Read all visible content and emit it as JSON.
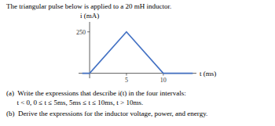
{
  "chart_data": {
    "type": "line",
    "title": "The triangular pulse below is applied to a 20 mH inductor.",
    "annotations": [
      "(a)  Write the expressions that describe i(t) in the four intervals:",
      "      t < 0, 0 ≤ t ≤ 5ms, 5ms ≤ t ≤ 10ms, t > 10ms.",
      "(b)  Derive the expressions for the inductor voltage, power, and energy."
    ],
    "x_label": "t (ms)",
    "y_label": "i (mA)",
    "x": [
      -1,
      0,
      5,
      10,
      14
    ],
    "values": [
      0,
      0,
      250,
      0,
      0
    ],
    "color": "#4472C4",
    "xlim": [
      -1.5,
      14.5
    ],
    "ylim": [
      -30,
      310
    ],
    "xticks": [
      5,
      10
    ],
    "yticks": [
      250
    ]
  }
}
